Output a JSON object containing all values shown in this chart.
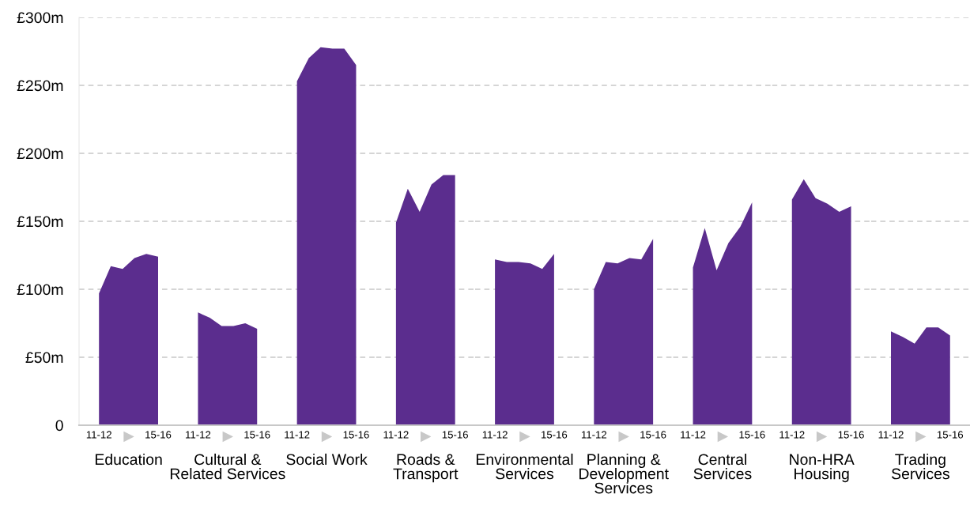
{
  "chart_data": [
    {
      "type": "area",
      "xlabel": "Education",
      "categories": [
        "11-12",
        null,
        null,
        null,
        null,
        "15-16"
      ],
      "values": [
        97,
        117,
        115,
        123,
        126,
        124
      ],
      "color": "#5b2d8e",
      "ylim": [
        0,
        300
      ],
      "yticks": [
        {
          "value": 0,
          "label": "0"
        },
        {
          "value": 50,
          "label": "£50m"
        },
        {
          "value": 100,
          "label": "£100m"
        },
        {
          "value": 150,
          "label": "£150m"
        },
        {
          "value": 200,
          "label": "£200m"
        },
        {
          "value": 250,
          "label": "£250m"
        },
        {
          "value": 300,
          "label": "£300m"
        }
      ],
      "grid": "y"
    },
    {
      "type": "area",
      "xlabel": "Cultural &\nRelated Services",
      "categories": [
        "11-12",
        null,
        null,
        null,
        null,
        "15-16"
      ],
      "values": [
        83,
        79,
        73,
        73,
        75,
        71
      ],
      "color": "#5b2d8e",
      "ylim": [
        0,
        300
      ],
      "yticks": [
        0,
        50,
        100,
        150,
        200,
        250,
        300
      ],
      "grid": "y",
      "tick_labels": "x"
    },
    {
      "type": "area",
      "xlabel": "Social Work",
      "categories": [
        "11-12",
        null,
        null,
        null,
        null,
        "15-16"
      ],
      "values": [
        253,
        270,
        278,
        277,
        277,
        265
      ],
      "color": "#5b2d8e",
      "ylim": [
        0,
        300
      ],
      "yticks": [
        0,
        50,
        100,
        150,
        200,
        250,
        300
      ],
      "grid": "y",
      "tick_labels": "x"
    },
    {
      "type": "area",
      "xlabel": "Roads &\nTransport",
      "categories": [
        "11-12",
        null,
        null,
        null,
        null,
        "15-16"
      ],
      "values": [
        149,
        174,
        157,
        177,
        184,
        184
      ],
      "color": "#5b2d8e",
      "ylim": [
        0,
        300
      ],
      "yticks": [
        0,
        50,
        100,
        150,
        200,
        250,
        300
      ],
      "grid": "y",
      "tick_labels": "x"
    },
    {
      "type": "area",
      "xlabel": "Environmental\nServices",
      "categories": [
        "11-12",
        null,
        null,
        null,
        null,
        "15-16"
      ],
      "values": [
        122,
        120,
        120,
        119,
        115,
        126
      ],
      "color": "#5b2d8e",
      "ylim": [
        0,
        300
      ],
      "yticks": [
        0,
        50,
        100,
        150,
        200,
        250,
        300
      ],
      "grid": "y",
      "tick_labels": "x"
    },
    {
      "type": "area",
      "xlabel": "Planning &\nDevelopment\nServices",
      "categories": [
        "11-12",
        null,
        null,
        null,
        null,
        "15-16"
      ],
      "values": [
        100,
        120,
        119,
        123,
        122,
        137
      ],
      "color": "#5b2d8e",
      "ylim": [
        0,
        300
      ],
      "yticks": [
        0,
        50,
        100,
        150,
        200,
        250,
        300
      ],
      "grid": "y",
      "tick_labels": "x"
    },
    {
      "type": "area",
      "xlabel": "Central\nServices",
      "categories": [
        "11-12",
        null,
        null,
        null,
        null,
        "15-16"
      ],
      "values": [
        116,
        145,
        114,
        134,
        146,
        164
      ],
      "color": "#5b2d8e",
      "ylim": [
        0,
        300
      ],
      "yticks": [
        0,
        50,
        100,
        150,
        200,
        250,
        300
      ],
      "grid": "y",
      "tick_labels": "x"
    },
    {
      "type": "area",
      "xlabel": "Non-HRA\nHousing",
      "categories": [
        "11-12",
        null,
        null,
        null,
        null,
        "15-16"
      ],
      "values": [
        166,
        181,
        167,
        163,
        157,
        161
      ],
      "color": "#5b2d8e",
      "ylim": [
        0,
        300
      ],
      "yticks": [
        0,
        50,
        100,
        150,
        200,
        250,
        300
      ],
      "grid": "y",
      "tick_labels": "x"
    },
    {
      "type": "area",
      "xlabel": "Trading\nServices",
      "categories": [
        "11-12",
        null,
        null,
        null,
        null,
        "15-16"
      ],
      "values": [
        69,
        65,
        60,
        72,
        72,
        66
      ],
      "color": "#5b2d8e",
      "ylim": [
        0,
        300
      ],
      "yticks": [
        0,
        50,
        100,
        150,
        200,
        250,
        300
      ],
      "grid": "y",
      "tick_labels": "x"
    }
  ]
}
